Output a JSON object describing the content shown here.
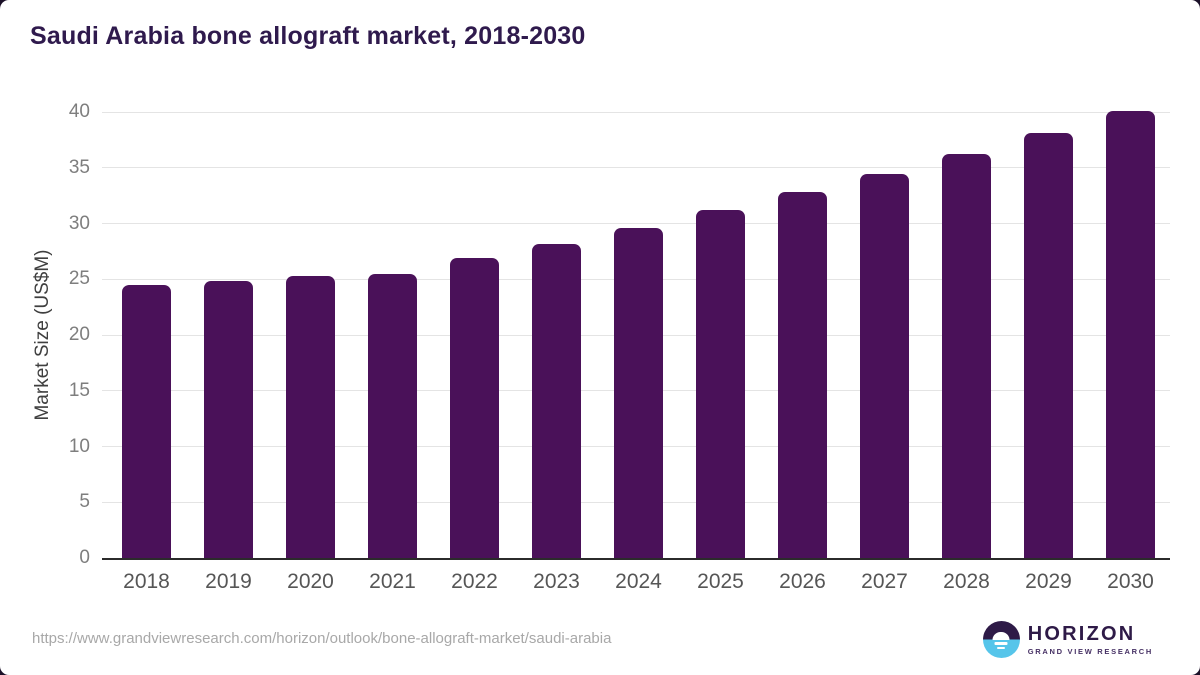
{
  "title": "Saudi Arabia bone allograft market, 2018-2030",
  "source_url": "https://www.grandviewresearch.com/horizon/outlook/bone-allograft-market/saudi-arabia",
  "logo": {
    "name": "HORIZON",
    "subtitle": "GRAND VIEW RESEARCH",
    "icon": "sunrise-horizon-icon"
  },
  "colors": {
    "bar": "#4a1159",
    "title": "#2f1a4d",
    "y_tick_text": "#7e7e7e",
    "x_tick_text": "#565656",
    "gridline": "#e4e4e4",
    "baseline": "#2b2b2b",
    "url_text": "#a8a8a8",
    "logo_purple": "#2e1a47",
    "logo_blue": "#56c5ea",
    "page_background": "#1b1028",
    "card_background": "#ffffff"
  },
  "chart_data": {
    "type": "bar",
    "title": "Saudi Arabia bone allograft market, 2018-2030",
    "xlabel": "",
    "ylabel": "Market Size (US$M)",
    "categories": [
      "2018",
      "2019",
      "2020",
      "2021",
      "2022",
      "2023",
      "2024",
      "2025",
      "2026",
      "2027",
      "2028",
      "2029",
      "2030"
    ],
    "values": [
      24.5,
      24.8,
      25.3,
      25.5,
      26.9,
      28.2,
      29.6,
      31.2,
      32.8,
      34.4,
      36.2,
      38.1,
      40.1
    ],
    "ylim": [
      0,
      40
    ],
    "ytick_step": 5,
    "yticks": [
      0,
      5,
      10,
      15,
      20,
      25,
      30,
      35,
      40
    ],
    "grid": true,
    "legend": false,
    "bar_corner_radius": "rounded-top"
  }
}
